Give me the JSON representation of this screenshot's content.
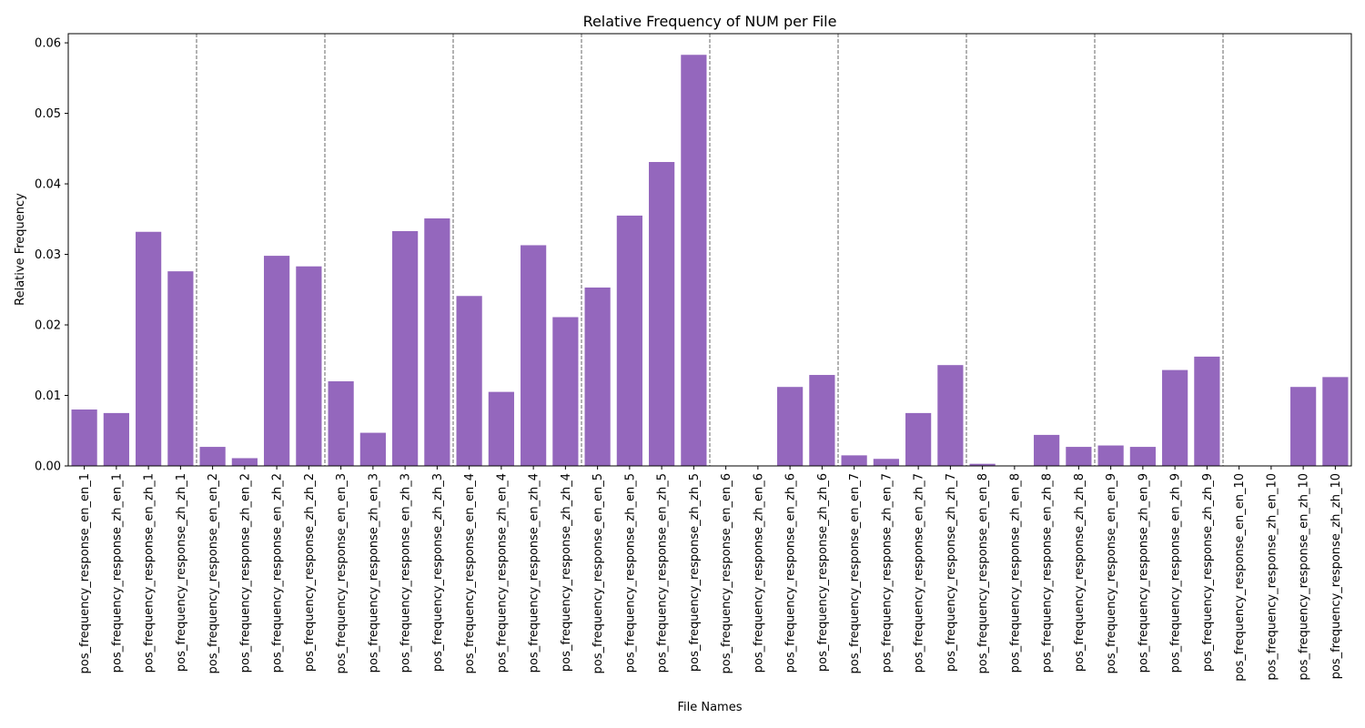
{
  "chart_data": {
    "type": "bar",
    "title": "Relative Frequency of NUM per File",
    "xlabel": "File Names",
    "ylabel": "Relative Frequency",
    "ylim": [
      0,
      0.0613
    ],
    "yticks": [
      "0.00",
      "0.01",
      "0.02",
      "0.03",
      "0.04",
      "0.05",
      "0.06"
    ],
    "ytick_values": [
      0,
      0.01,
      0.02,
      0.03,
      0.04,
      0.05,
      0.06
    ],
    "bar_color": "#9467bd",
    "separator_color": "#808080",
    "group_size": 4,
    "categories": [
      "pos_frequency_response_en_en_1",
      "pos_frequency_response_zh_en_1",
      "pos_frequency_response_en_zh_1",
      "pos_frequency_response_zh_zh_1",
      "pos_frequency_response_en_en_2",
      "pos_frequency_response_zh_en_2",
      "pos_frequency_response_en_zh_2",
      "pos_frequency_response_zh_zh_2",
      "pos_frequency_response_en_en_3",
      "pos_frequency_response_zh_en_3",
      "pos_frequency_response_en_zh_3",
      "pos_frequency_response_zh_zh_3",
      "pos_frequency_response_en_en_4",
      "pos_frequency_response_zh_en_4",
      "pos_frequency_response_en_zh_4",
      "pos_frequency_response_zh_zh_4",
      "pos_frequency_response_en_en_5",
      "pos_frequency_response_zh_en_5",
      "pos_frequency_response_en_zh_5",
      "pos_frequency_response_zh_zh_5",
      "pos_frequency_response_en_en_6",
      "pos_frequency_response_zh_en_6",
      "pos_frequency_response_en_zh_6",
      "pos_frequency_response_zh_zh_6",
      "pos_frequency_response_en_en_7",
      "pos_frequency_response_zh_en_7",
      "pos_frequency_response_en_zh_7",
      "pos_frequency_response_zh_zh_7",
      "pos_frequency_response_en_en_8",
      "pos_frequency_response_zh_en_8",
      "pos_frequency_response_en_zh_8",
      "pos_frequency_response_zh_zh_8",
      "pos_frequency_response_en_en_9",
      "pos_frequency_response_zh_en_9",
      "pos_frequency_response_en_zh_9",
      "pos_frequency_response_zh_zh_9",
      "pos_frequency_response_en_en_10",
      "pos_frequency_response_zh_en_10",
      "pos_frequency_response_en_zh_10",
      "pos_frequency_response_zh_zh_10"
    ],
    "values": [
      0.008,
      0.0075,
      0.0332,
      0.0276,
      0.0027,
      0.0011,
      0.0298,
      0.0283,
      0.012,
      0.0047,
      0.0333,
      0.0351,
      0.0241,
      0.0105,
      0.0313,
      0.0211,
      0.0253,
      0.0355,
      0.0431,
      0.0583,
      0.0,
      0.0,
      0.0112,
      0.0129,
      0.0015,
      0.001,
      0.0075,
      0.0143,
      0.0003,
      0.0,
      0.0044,
      0.0027,
      0.0029,
      0.0027,
      0.0136,
      0.0155,
      0.0,
      0.0,
      0.0112,
      0.0126
    ]
  }
}
